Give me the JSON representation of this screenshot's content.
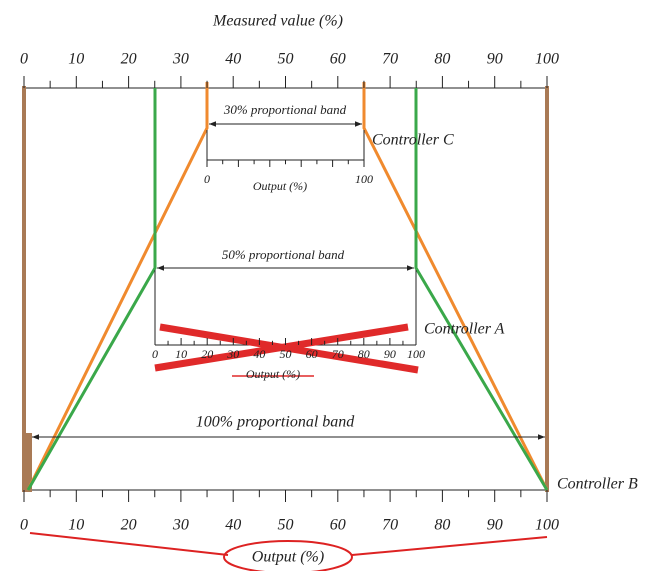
{
  "title": "Measured value (%)",
  "top_axis": {
    "labels": [
      "0",
      "10",
      "20",
      "30",
      "40",
      "50",
      "60",
      "70",
      "80",
      "90",
      "100"
    ]
  },
  "bottom_axis": {
    "labels": [
      "0",
      "10",
      "20",
      "30",
      "40",
      "50",
      "60",
      "70",
      "80",
      "90",
      "100"
    ],
    "title": "Output (%)"
  },
  "controller_c": {
    "name": "Controller C",
    "band": "30% proportional band",
    "scale_labels": [
      "0",
      "100"
    ],
    "scale_title": "Output (%)"
  },
  "controller_a": {
    "name": "Controller A",
    "band": "50% proportional band",
    "scale_labels": [
      "0",
      "10",
      "20",
      "30",
      "40",
      "50",
      "60",
      "70",
      "80",
      "90",
      "100"
    ],
    "scale_title": "Output (%)"
  },
  "controller_b": {
    "name": "Controller B",
    "band": "100% proportional band"
  }
}
